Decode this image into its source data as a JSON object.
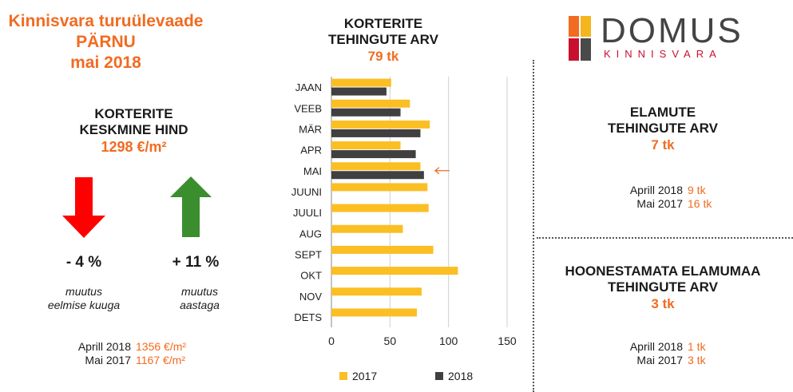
{
  "header": {
    "title_line1": "Kinnisvara turuülevaade",
    "title_line2": "PÄRNU",
    "title_line3": "mai 2018"
  },
  "price": {
    "title_line1": "KORTERITE",
    "title_line2": "KESKMINE HIND",
    "value": "1298 €/m²",
    "monthly_change": "- 4 %",
    "monthly_label_line1": "muutus",
    "monthly_label_line2": "eelmise kuuga",
    "yearly_change": "+ 11 %",
    "yearly_label_line1": "muutus",
    "yearly_label_line2": "aastaga",
    "compare": [
      {
        "label": "Aprill 2018",
        "value": "1356 €/m²"
      },
      {
        "label": "Mai 2017",
        "value": "1167 €/m²"
      }
    ]
  },
  "apartments": {
    "title_line1": "KORTERITE",
    "title_line2": "TEHINGUTE ARV",
    "value": "79 tk"
  },
  "logo": {
    "name": "DOMUS",
    "sub": "KINNISVARA"
  },
  "houses": {
    "title_line1": "ELAMUTE",
    "title_line2": "TEHINGUTE ARV",
    "value": "7 tk",
    "compare": [
      {
        "label": "Aprill 2018",
        "value": "9 tk"
      },
      {
        "label": "Mai 2017",
        "value": "16 tk"
      }
    ]
  },
  "land": {
    "title_line1": "HOONESTAMATA ELAMUMAA",
    "title_line2": "TEHINGUTE ARV",
    "value": "3 tk",
    "compare": [
      {
        "label": "Aprill 2018",
        "value": "1 tk"
      },
      {
        "label": "Mai 2017",
        "value": "3 tk"
      }
    ]
  },
  "colors": {
    "accent": "#f26b21",
    "series_2017": "#fbbf24",
    "series_2018": "#404040",
    "arrow_down": "#ff0000",
    "arrow_up": "#3a8e2e",
    "marker_arrow": "#f26b21"
  },
  "chart_data": {
    "type": "bar",
    "orientation": "horizontal",
    "categories": [
      "JAAN",
      "VEEB",
      "MÄR",
      "APR",
      "MAI",
      "JUUNI",
      "JUULI",
      "AUG",
      "SEPT",
      "OKT",
      "NOV",
      "DETS"
    ],
    "series": [
      {
        "name": "2017",
        "values": [
          51,
          67,
          84,
          59,
          76,
          82,
          83,
          61,
          87,
          108,
          77,
          73
        ]
      },
      {
        "name": "2018",
        "values": [
          47,
          59,
          76,
          72,
          79,
          null,
          null,
          null,
          null,
          null,
          null,
          null
        ]
      }
    ],
    "xlim": [
      0,
      150
    ],
    "xticks": [
      "0",
      "50",
      "100",
      "150"
    ],
    "gridlines": true,
    "highlight_category": "MAI",
    "legend": [
      "2017",
      "2018"
    ],
    "legend_position": "bottom"
  }
}
